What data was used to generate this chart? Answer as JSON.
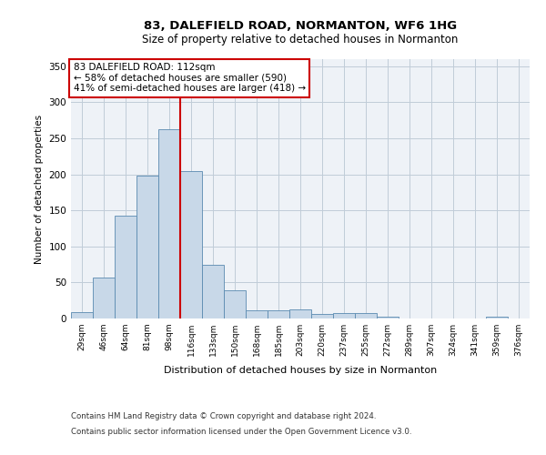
{
  "title1": "83, DALEFIELD ROAD, NORMANTON, WF6 1HG",
  "title2": "Size of property relative to detached houses in Normanton",
  "xlabel": "Distribution of detached houses by size in Normanton",
  "ylabel": "Number of detached properties",
  "categories": [
    "29sqm",
    "46sqm",
    "64sqm",
    "81sqm",
    "98sqm",
    "116sqm",
    "133sqm",
    "150sqm",
    "168sqm",
    "185sqm",
    "203sqm",
    "220sqm",
    "237sqm",
    "255sqm",
    "272sqm",
    "289sqm",
    "307sqm",
    "324sqm",
    "341sqm",
    "359sqm",
    "376sqm"
  ],
  "values": [
    9,
    57,
    143,
    198,
    263,
    204,
    74,
    39,
    12,
    12,
    13,
    6,
    8,
    7,
    3,
    0,
    0,
    0,
    0,
    3,
    0
  ],
  "bar_color": "#c8d8e8",
  "bar_edge_color": "#5a8ab0",
  "vline_color": "#cc0000",
  "vline_index": 4.5,
  "annotation_text": "83 DALEFIELD ROAD: 112sqm\n← 58% of detached houses are smaller (590)\n41% of semi-detached houses are larger (418) →",
  "annotation_box_color": "#ffffff",
  "annotation_box_edge": "#cc0000",
  "ylim": [
    0,
    360
  ],
  "yticks": [
    0,
    50,
    100,
    150,
    200,
    250,
    300,
    350
  ],
  "footer1": "Contains HM Land Registry data © Crown copyright and database right 2024.",
  "footer2": "Contains public sector information licensed under the Open Government Licence v3.0.",
  "plot_bg_color": "#eef2f7",
  "grid_color": "#c0ccd8"
}
